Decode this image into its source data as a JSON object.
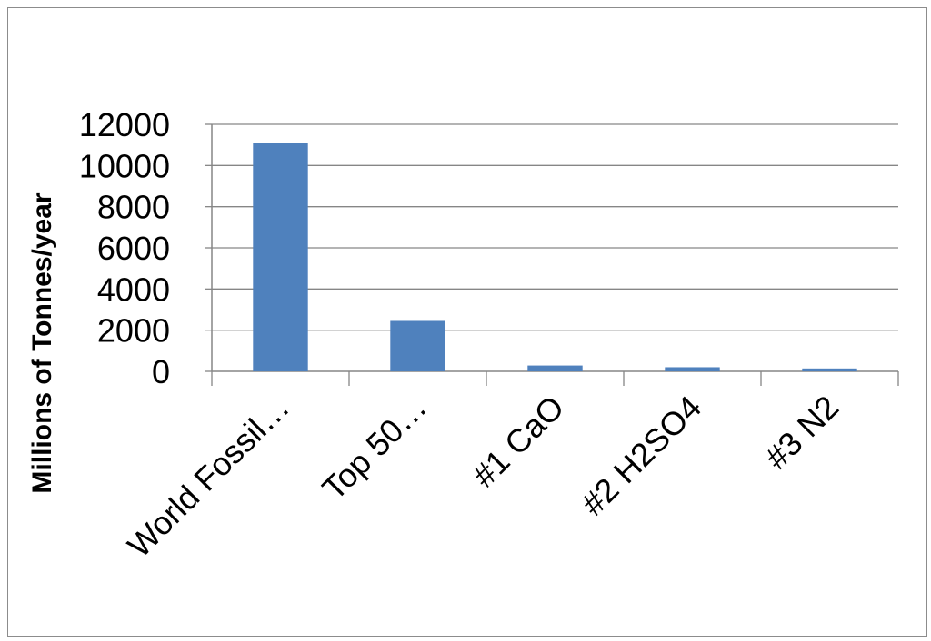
{
  "chart_data": {
    "type": "bar",
    "title": "",
    "xlabel": "",
    "ylabel": "Millions of Tonnes/year",
    "categories": [
      "World Fossil…",
      "Top 50…",
      "#1 CaO",
      "#2 H2SO4",
      "#3 N2"
    ],
    "values": [
      11100,
      2450,
      283,
      200,
      140
    ],
    "ylim": [
      0,
      12000
    ],
    "yticks": [
      0,
      2000,
      4000,
      6000,
      8000,
      10000,
      12000
    ],
    "grid": true,
    "legend": "none",
    "colors": {
      "bar": "#4f81bd",
      "grid": "#868686",
      "axis": "#868686"
    }
  }
}
